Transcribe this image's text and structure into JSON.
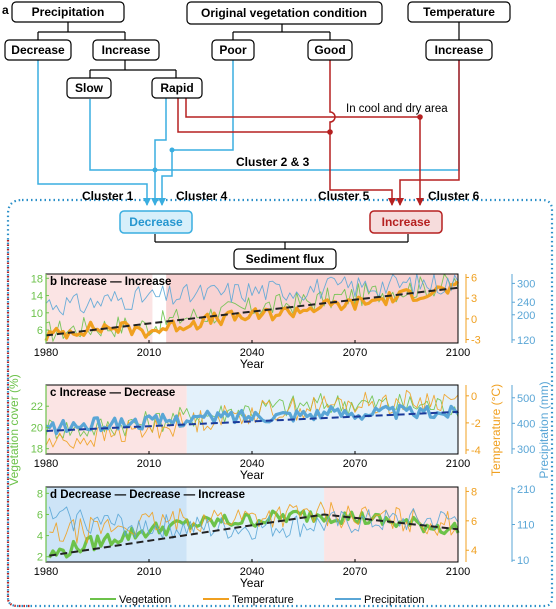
{
  "panel_a": {
    "label": "a",
    "boxes": {
      "precipitation": "Precipitation",
      "vegetation": "Original vegetation  condition",
      "temperature": "Temperature",
      "decrease": "Decrease",
      "increase": "Increase",
      "poor": "Poor",
      "good": "Good",
      "temp_increase": "Increase",
      "slow": "Slow",
      "rapid": "Rapid",
      "result_decrease": "Decrease",
      "result_increase": "Increase",
      "sediment": "Sediment flux"
    },
    "labels": {
      "cool_dry": "In cool and dry area",
      "cluster23": "Cluster 2 & 3",
      "cluster1": "Cluster  1",
      "cluster4": "Cluster 4",
      "cluster5": "Cluster 5",
      "cluster6": "Cluster 6"
    },
    "colors": {
      "blue": "#3aaee0",
      "red": "#b52020",
      "dot_border": "#2a8fc8",
      "dot_red": "#b52020"
    }
  },
  "legend": {
    "vegetation": "Vegetation",
    "temperature": "Temperature",
    "precipitation": "Precipitation"
  },
  "axis_titles": {
    "left": "Vegetation cover (%)",
    "mid": "Temperature (°C)",
    "right": "Precipitation (mm)",
    "x": "Year"
  },
  "colors": {
    "vegetation": "#6cc24a",
    "temperature": "#f0a020",
    "precipitation": "#5aa6d6",
    "trend": "#222222",
    "trend_blue": "#1a3a9a"
  },
  "chart_data": [
    {
      "type": "line",
      "title": "b Increase — Increase",
      "xlabel": "Year",
      "xlim": [
        1980,
        2100
      ],
      "xticks": [
        "1980",
        "2010",
        "2040",
        "2070",
        "2100"
      ],
      "thick_series": "Temperature",
      "trend": {
        "start": [
          1980,
          -2.4
        ],
        "end": [
          2100,
          4.5
        ],
        "color": "dark"
      },
      "shading": [
        {
          "from": 1980,
          "to": 2011,
          "color": "#fbe4e4"
        },
        {
          "from": 2015,
          "to": 2100,
          "color": "#f8d3d3"
        }
      ],
      "axes": [
        {
          "name": "Vegetation cover",
          "lim": [
            3,
            19
          ],
          "ticks": [
            "6",
            "10",
            "14",
            "18"
          ],
          "color": "#6cc24a"
        },
        {
          "name": "Temperature",
          "lim": [
            -3.5,
            6.5
          ],
          "ticks": [
            "-3",
            "0",
            "3",
            "6"
          ],
          "color": "#f0a020"
        },
        {
          "name": "Precipitation",
          "lim": [
            110,
            330
          ],
          "ticks": [
            "120",
            "200",
            "240",
            "300"
          ],
          "color": "#5aa6d6"
        }
      ],
      "series": [
        {
          "name": "Vegetation",
          "x": [
            1980,
            1990,
            2000,
            2010,
            2020,
            2030,
            2040,
            2050,
            2060,
            2070,
            2080,
            2090,
            2100
          ],
          "values": [
            5.5,
            6.5,
            7,
            7,
            9,
            10,
            11,
            12,
            13,
            14,
            15,
            16,
            17
          ]
        },
        {
          "name": "Temperature",
          "x": [
            1980,
            1990,
            2000,
            2010,
            2020,
            2030,
            2040,
            2050,
            2060,
            2070,
            2080,
            2090,
            2100
          ],
          "values": [
            -2.5,
            -1.5,
            -1.2,
            -1.8,
            -0.8,
            0,
            0.4,
            1,
            1.8,
            2.2,
            3,
            3.8,
            4.5
          ]
        },
        {
          "name": "Precipitation",
          "x": [
            1980,
            1990,
            2000,
            2010,
            2020,
            2030,
            2040,
            2050,
            2060,
            2070,
            2080,
            2090,
            2100
          ],
          "values": [
            240,
            230,
            250,
            255,
            260,
            270,
            275,
            280,
            285,
            290,
            295,
            300,
            300
          ]
        }
      ]
    },
    {
      "type": "line",
      "title": "c Increase — Decrease",
      "xlabel": "Year",
      "xlim": [
        1980,
        2100
      ],
      "xticks": [
        "1980",
        "2010",
        "2040",
        "2070",
        "2100"
      ],
      "thick_series": "Precipitation",
      "trend": {
        "start": [
          1980,
          370
        ],
        "end": [
          2100,
          445
        ],
        "color": "blue"
      },
      "shading": [
        {
          "from": 1980,
          "to": 2021,
          "color": "#fbe4e4"
        },
        {
          "from": 2021,
          "to": 2100,
          "color": "#e3f1fb"
        }
      ],
      "axes": [
        {
          "name": "Vegetation cover",
          "lim": [
            17.5,
            24
          ],
          "ticks": [
            "18",
            "20",
            "22"
          ],
          "color": "#6cc24a"
        },
        {
          "name": "Temperature",
          "lim": [
            -4.3,
            0.8
          ],
          "ticks": [
            "-4",
            "-2",
            "0"
          ],
          "color": "#f0a020"
        },
        {
          "name": "Precipitation",
          "lim": [
            280,
            550
          ],
          "ticks": [
            "300",
            "400",
            "500"
          ],
          "color": "#5aa6d6"
        }
      ],
      "series": [
        {
          "name": "Vegetation",
          "x": [
            1980,
            1990,
            2000,
            2010,
            2020,
            2030,
            2040,
            2050,
            2060,
            2070,
            2080,
            2090,
            2100
          ],
          "values": [
            20,
            19.8,
            20.2,
            20.5,
            21,
            21.3,
            21.8,
            22,
            22.2,
            22.3,
            22.2,
            22.1,
            22
          ]
        },
        {
          "name": "Temperature",
          "x": [
            1980,
            1990,
            2000,
            2010,
            2020,
            2030,
            2040,
            2050,
            2060,
            2070,
            2080,
            2090,
            2100
          ],
          "values": [
            -3.5,
            -3.2,
            -2.8,
            -2.5,
            -2,
            -1.6,
            -1.2,
            -1,
            -0.8,
            -0.6,
            -0.5,
            -0.4,
            -0.3
          ]
        },
        {
          "name": "Precipitation",
          "x": [
            1980,
            1990,
            2000,
            2010,
            2020,
            2030,
            2040,
            2050,
            2060,
            2070,
            2080,
            2090,
            2100
          ],
          "values": [
            380,
            390,
            400,
            405,
            415,
            425,
            430,
            435,
            440,
            440,
            445,
            440,
            445
          ]
        }
      ]
    },
    {
      "type": "line",
      "title": "d Decrease — Decrease — Increase",
      "xlabel": "Year",
      "xlim": [
        1980,
        2100
      ],
      "xticks": [
        "1980",
        "2010",
        "2040",
        "2070",
        "2100"
      ],
      "thick_series": "Vegetation",
      "trend": {
        "start": [
          1981,
          2.1
        ],
        "end": [
          2100,
          4.6
        ],
        "peak": [
          2061,
          6.0
        ],
        "color": "dark"
      },
      "shading": [
        {
          "from": 1980,
          "to": 2021,
          "color": "#cde4f7"
        },
        {
          "from": 2021,
          "to": 2061,
          "color": "#e3f1fb"
        },
        {
          "from": 2061,
          "to": 2100,
          "color": "#fbe4e4"
        }
      ],
      "axes": [
        {
          "name": "Vegetation cover",
          "lim": [
            1.5,
            8.6
          ],
          "ticks": [
            "2",
            "4",
            "6",
            "8"
          ],
          "color": "#6cc24a"
        },
        {
          "name": "Temperature",
          "lim": [
            3.2,
            8.3
          ],
          "ticks": [
            "4",
            "6",
            "8"
          ],
          "color": "#f0a020"
        },
        {
          "name": "Precipitation",
          "lim": [
            5,
            215
          ],
          "ticks": [
            "10",
            "110",
            "210"
          ],
          "color": "#5aa6d6"
        }
      ],
      "series": [
        {
          "name": "Vegetation",
          "x": [
            1981,
            1990,
            2000,
            2010,
            2020,
            2030,
            2040,
            2050,
            2061,
            2070,
            2080,
            2090,
            2100
          ],
          "values": [
            2.1,
            3,
            3.8,
            4.5,
            5,
            5.3,
            5.5,
            5.8,
            6,
            5.7,
            5.3,
            5,
            4.6
          ]
        },
        {
          "name": "Temperature",
          "x": [
            1981,
            1990,
            2000,
            2010,
            2020,
            2030,
            2040,
            2050,
            2061,
            2070,
            2080,
            2090,
            2100
          ],
          "values": [
            5,
            5.3,
            5.6,
            5.8,
            6,
            6.2,
            6.3,
            6.4,
            6.5,
            6.3,
            6.1,
            5.9,
            5.8
          ]
        },
        {
          "name": "Precipitation",
          "x": [
            1981,
            1990,
            2000,
            2010,
            2020,
            2030,
            2040,
            2050,
            2061,
            2070,
            2080,
            2090,
            2100
          ],
          "values": [
            130,
            125,
            110,
            105,
            100,
            98,
            100,
            105,
            110,
            115,
            118,
            120,
            122
          ]
        }
      ]
    }
  ]
}
